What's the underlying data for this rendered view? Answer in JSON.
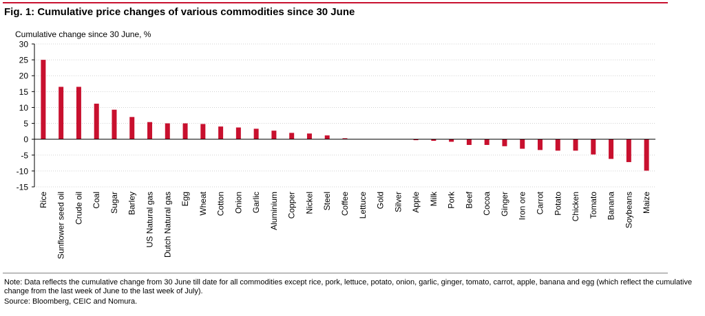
{
  "figure": {
    "title": "Fig. 1: Cumulative price changes of various commodities since 30 June",
    "note": "Note: Data reflects the cumulative change from 30 June till date for all commodities except rice, pork, lettuce, potato, onion, garlic, ginger, tomato, carrot, apple, banana and egg (which reflect the cumulative change from the last week of June to the last week of July).",
    "source": "Source: Bloomberg, CEIC and Nomura."
  },
  "colors": {
    "accent": "#c8102e",
    "bar": "#c8102e",
    "grid": "#d0d0d0",
    "axis": "#000000"
  },
  "chart_data": {
    "type": "bar",
    "title": "Fig. 1: Cumulative price changes of various commodities since 30 June",
    "xlabel": "",
    "ylabel": "Cumulative change since 30 June, %",
    "ylim": [
      -15,
      30
    ],
    "yticks": [
      -15,
      -10,
      -5,
      0,
      5,
      10,
      15,
      20,
      25,
      30
    ],
    "grid": true,
    "categories": [
      "Rice",
      "Sunflower seed oil",
      "Crude oil",
      "Coal",
      "Sugar",
      "Barley",
      "US Natural gas",
      "Dutch Natural gas",
      "Egg",
      "Wheat",
      "Cotton",
      "Onion",
      "Garlic",
      "Aluminium",
      "Copper",
      "Nickel",
      "Steel",
      "Coffee",
      "Lettuce",
      "Gold",
      "Silver",
      "Apple",
      "Milk",
      "Pork",
      "Beef",
      "Cocoa",
      "Ginger",
      "Iron ore",
      "Carrot",
      "Potato",
      "Chicken",
      "Tomato",
      "Banana",
      "Soybeans",
      "Maize"
    ],
    "values": [
      25,
      16.5,
      16.5,
      11.2,
      9.3,
      7,
      5.4,
      5,
      5,
      4.8,
      4,
      3.7,
      3.3,
      2.7,
      2,
      1.8,
      1.2,
      0.3,
      0,
      0,
      0,
      -0.3,
      -0.5,
      -0.8,
      -1.8,
      -1.8,
      -2.2,
      -3,
      -3.4,
      -3.6,
      -3.6,
      -4.8,
      -6.2,
      -7.2,
      -9.9
    ]
  }
}
